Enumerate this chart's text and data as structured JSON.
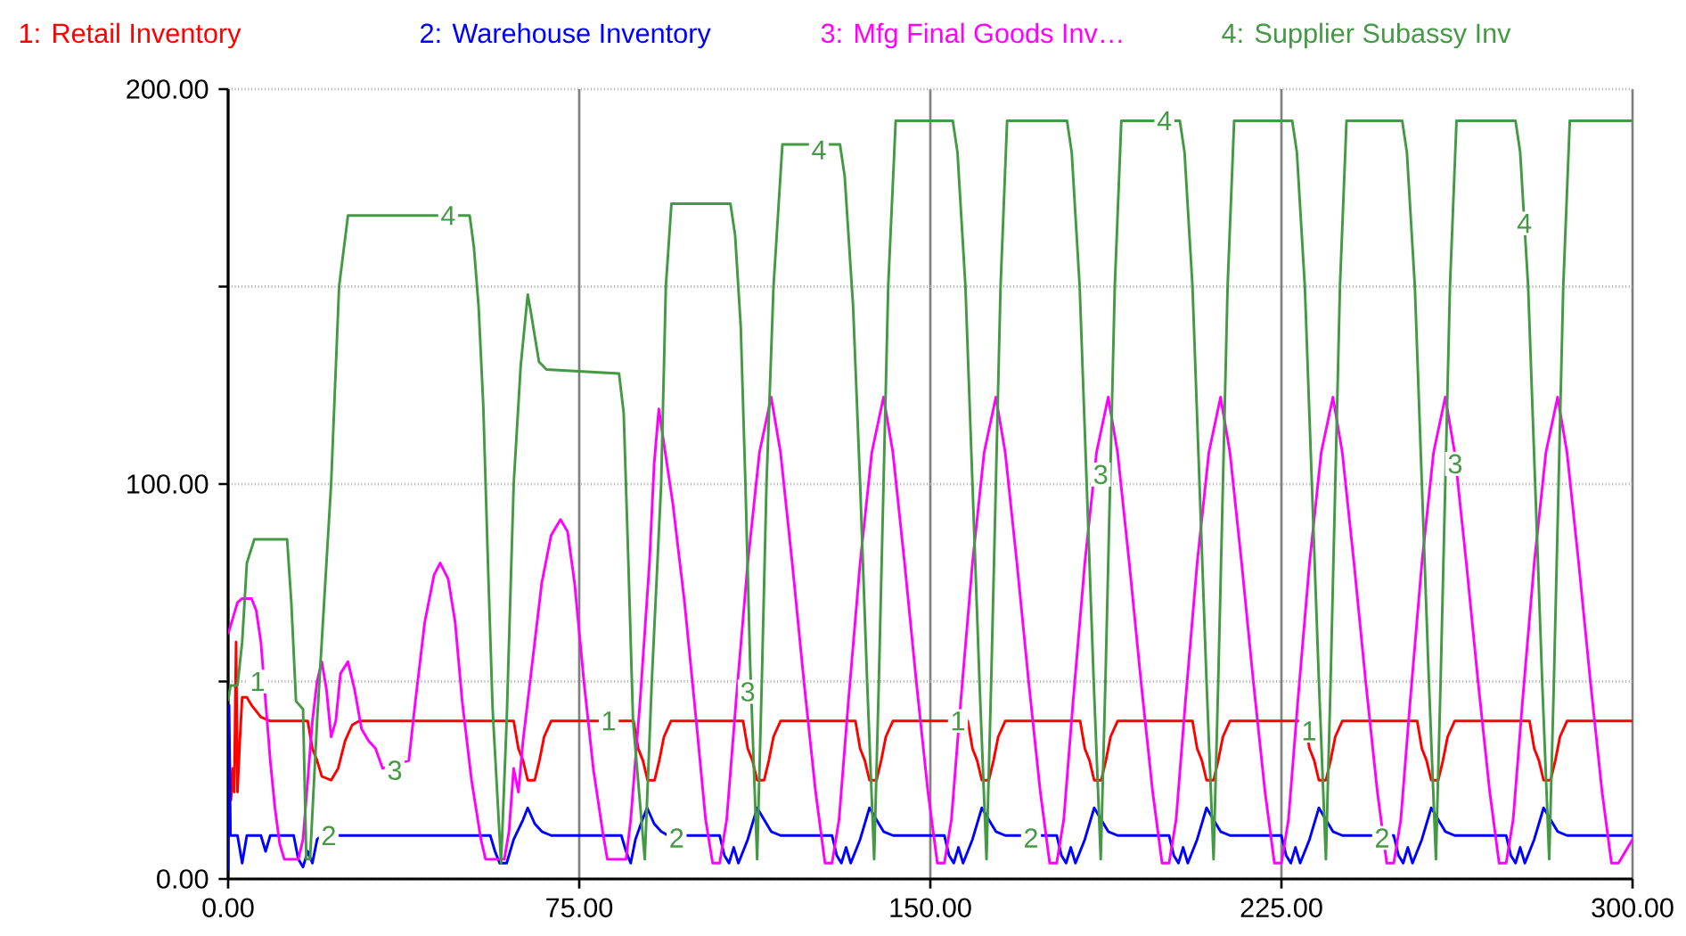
{
  "chart_data": {
    "type": "line",
    "xlim": [
      0,
      300
    ],
    "ylim": [
      0,
      200
    ],
    "xticks": [
      {
        "value": 0,
        "label": "0.00"
      },
      {
        "value": 75,
        "label": "75.00"
      },
      {
        "value": 150,
        "label": "150.00"
      },
      {
        "value": 225,
        "label": "225.00"
      },
      {
        "value": 300,
        "label": "300.00"
      }
    ],
    "yticks": [
      {
        "value": 0,
        "label": "0.00"
      },
      {
        "value": 50,
        "label": null
      },
      {
        "value": 100,
        "label": "100.00"
      },
      {
        "value": 150,
        "label": null
      },
      {
        "value": 200,
        "label": "200.00"
      }
    ],
    "grid": true,
    "legend": "top",
    "line_style": "solid",
    "series": [
      {
        "name": "1: Retail Inventory",
        "color": "#ff0000",
        "x": [
          0,
          0.3,
          0.6,
          1,
          1.3,
          1.7,
          2,
          2.5,
          3,
          4,
          5,
          7,
          9,
          17,
          18,
          19,
          20,
          22,
          23.5,
          25,
          26.5,
          28,
          61,
          62,
          63,
          64,
          65.5,
          66.5,
          67.5,
          69,
          86.6,
          87.6,
          88.6,
          89.6,
          91.1,
          92.1,
          93.1,
          94.6,
          110,
          111,
          112,
          113,
          114.5,
          115.5,
          116.5,
          118,
          134,
          135,
          136,
          137,
          138.5,
          139.5,
          140.5,
          142,
          158,
          159,
          160,
          161,
          162.5,
          163.5,
          164.5,
          166,
          182,
          183,
          184,
          185,
          186.5,
          187.5,
          188.5,
          190,
          206,
          207,
          208,
          209,
          210.5,
          211.5,
          212.5,
          214,
          230,
          231,
          232,
          233,
          234.5,
          235.5,
          236.5,
          238,
          254,
          255,
          256,
          257,
          258.5,
          259.5,
          260.5,
          262,
          278,
          279,
          280,
          281,
          282.5,
          283.5,
          284.5,
          286,
          300
        ],
        "values": [
          22,
          30,
          20,
          28,
          22,
          60,
          22,
          35,
          46,
          46,
          44,
          41,
          40,
          40,
          33,
          30,
          26,
          25,
          28,
          35,
          39,
          40,
          40,
          33,
          30,
          25,
          25,
          30,
          36,
          40,
          40,
          33,
          30,
          25,
          25,
          30,
          36,
          40,
          40,
          33,
          30,
          25,
          25,
          30,
          36,
          40,
          40,
          33,
          30,
          25,
          25,
          30,
          36,
          40,
          40,
          33,
          30,
          25,
          25,
          30,
          36,
          40,
          40,
          33,
          30,
          25,
          25,
          30,
          36,
          40,
          40,
          33,
          30,
          25,
          25,
          30,
          36,
          40,
          40,
          33,
          30,
          25,
          25,
          30,
          36,
          40,
          40,
          33,
          30,
          25,
          25,
          30,
          36,
          40,
          40,
          33,
          30,
          25,
          25,
          30,
          36,
          40,
          40
        ]
      },
      {
        "name": "2: Warehouse Inventory",
        "color": "#0000ff",
        "x": [
          0,
          0.2,
          0.5,
          2,
          3,
          4,
          7,
          8,
          9,
          14,
          15,
          16,
          17,
          18,
          19,
          20,
          56,
          57,
          58,
          59.5,
          61,
          63,
          64,
          65.5,
          67,
          69,
          84,
          85,
          86,
          87,
          88.5,
          89.5,
          91,
          92.5,
          94,
          105,
          106,
          107,
          108,
          109,
          111,
          113,
          115,
          116,
          118,
          129,
          130,
          131,
          132,
          133,
          135,
          137,
          139,
          140,
          142,
          153,
          154,
          155,
          156,
          157,
          159,
          161,
          163,
          164,
          166,
          177,
          178,
          179,
          180,
          181,
          183,
          185,
          187,
          188,
          190,
          201,
          202,
          203,
          204,
          205,
          207,
          209,
          211,
          212,
          214,
          225,
          226,
          227,
          228,
          229,
          231,
          233,
          235,
          236,
          238,
          249,
          250,
          251,
          252,
          253,
          255,
          257,
          259,
          260,
          262,
          273,
          274,
          275,
          276,
          277,
          279,
          281,
          283,
          284,
          286,
          300
        ],
        "values": [
          2,
          44,
          11,
          11,
          4,
          11,
          11,
          7,
          11,
          11,
          5,
          3,
          7,
          4,
          10,
          11,
          11,
          7,
          4,
          4,
          10,
          15,
          18,
          14,
          12,
          11,
          11,
          7,
          4,
          10,
          15,
          18,
          14,
          12,
          11,
          11,
          6,
          4,
          8,
          4,
          10,
          18,
          14,
          12,
          11,
          11,
          6,
          4,
          8,
          4,
          10,
          18,
          14,
          12,
          11,
          11,
          6,
          4,
          8,
          4,
          10,
          18,
          14,
          12,
          11,
          11,
          6,
          4,
          8,
          4,
          10,
          18,
          14,
          12,
          11,
          11,
          6,
          4,
          8,
          4,
          10,
          18,
          14,
          12,
          11,
          11,
          6,
          4,
          8,
          4,
          10,
          18,
          14,
          12,
          11,
          11,
          6,
          4,
          8,
          4,
          10,
          18,
          14,
          12,
          11,
          11,
          6,
          4,
          8,
          4,
          10,
          18,
          14,
          12,
          11,
          11
        ]
      },
      {
        "name": "3: Mfg Final Goods Inv…",
        "color": "#ff00ff",
        "x": [
          0,
          1,
          2,
          3,
          5,
          6,
          7,
          8,
          9,
          10,
          11,
          12,
          15,
          16,
          17,
          18,
          19,
          20,
          21,
          22,
          23,
          24,
          25.6,
          27,
          28.5,
          30,
          31.5,
          33,
          38.6,
          40,
          42,
          44,
          45.3,
          47,
          48.5,
          50,
          52,
          54,
          55,
          59,
          60,
          61,
          62,
          63,
          65,
          67,
          69,
          71,
          72.5,
          74,
          76,
          78,
          80,
          81,
          85,
          86,
          88,
          90,
          91,
          92,
          95,
          97.5,
          100,
          102,
          103.5,
          105,
          106.5,
          108.5,
          111,
          113.5,
          116,
          118,
          120.5,
          123,
          125.5,
          127.5,
          129,
          130.5,
          132.5,
          135,
          137.5,
          140,
          142,
          144.5,
          147,
          149.5,
          151.5,
          153,
          154.5,
          156.5,
          159,
          161.5,
          164,
          166,
          168.5,
          171,
          173.5,
          175.5,
          177,
          178.5,
          180.5,
          183,
          185.5,
          188,
          190,
          192.5,
          195,
          197.5,
          199.5,
          201,
          202.5,
          204.5,
          207,
          209.5,
          212,
          214,
          216.5,
          219,
          221.5,
          223.5,
          225,
          226.5,
          228.5,
          231,
          233.5,
          236,
          238,
          240.5,
          243,
          245.5,
          247.5,
          249,
          250.5,
          252.5,
          255,
          257.5,
          260,
          262,
          264.5,
          267,
          269.5,
          271.5,
          273,
          274.5,
          276.5,
          279,
          281.5,
          284,
          286,
          288.5,
          291,
          293.5,
          295.5,
          297,
          299,
          300
        ],
        "values": [
          62,
          66,
          70,
          71,
          71,
          68,
          60,
          45,
          30,
          18,
          9,
          5,
          5,
          10,
          25,
          40,
          50,
          55,
          48,
          36,
          40,
          52,
          55,
          48,
          38,
          35,
          33,
          28,
          30,
          45,
          65,
          77,
          80,
          76,
          65,
          45,
          25,
          10,
          5,
          5,
          12,
          28,
          22,
          35,
          55,
          75,
          87,
          91,
          88,
          75,
          50,
          28,
          12,
          5,
          5,
          15,
          45,
          80,
          105,
          119,
          95,
          70,
          40,
          15,
          4,
          4,
          15,
          45,
          80,
          108,
          122,
          108,
          80,
          50,
          22,
          4,
          4,
          15,
          45,
          80,
          108,
          122,
          108,
          80,
          50,
          22,
          4,
          4,
          15,
          45,
          80,
          108,
          122,
          108,
          80,
          50,
          22,
          4,
          4,
          15,
          45,
          80,
          108,
          122,
          108,
          80,
          50,
          22,
          4,
          4,
          15,
          45,
          80,
          108,
          122,
          108,
          80,
          50,
          22,
          4,
          4,
          15,
          45,
          80,
          108,
          122,
          108,
          80,
          50,
          22,
          4,
          4,
          15,
          45,
          80,
          108,
          122,
          108,
          80,
          50,
          22,
          4,
          4,
          15,
          45,
          80,
          108,
          122,
          108,
          80,
          50,
          22,
          4,
          4,
          8,
          10
        ]
      },
      {
        "name": "4: Supplier Subassy Inv",
        "color": "#449944",
        "x": [
          0,
          0.5,
          2,
          3,
          4,
          5.6,
          12.6,
          13.5,
          14.5,
          16,
          16.7,
          17.5,
          19,
          20,
          22,
          23.7,
          25.6,
          51.6,
          52.5,
          53.5,
          54.5,
          55.5,
          56.5,
          58.3,
          59.5,
          61,
          62.5,
          64,
          64.6,
          66.4,
          68,
          83.5,
          84.5,
          85.5,
          86.5,
          89,
          90.5,
          92.5,
          93.5,
          94.7,
          107.3,
          108.3,
          109.5,
          110.5,
          111.5,
          113,
          114,
          115,
          116.5,
          118.4,
          130.7,
          131.7,
          133.5,
          135,
          136.5,
          138,
          139,
          140,
          141,
          142.6,
          154.8,
          155.8,
          157.5,
          159,
          160.5,
          162,
          163,
          164,
          165,
          166.4,
          179.2,
          180.2,
          181.9,
          183.4,
          184.9,
          186.4,
          187.4,
          188.4,
          189.4,
          190.8,
          203.3,
          204.3,
          206,
          207.5,
          209,
          210.5,
          211.5,
          212.5,
          213.5,
          214.9,
          227.3,
          228.3,
          230,
          231.5,
          233,
          234.5,
          235.5,
          236.5,
          237.5,
          238.9,
          250.8,
          251.8,
          253.5,
          255,
          256.5,
          258,
          259,
          260,
          261,
          262.4,
          275,
          276,
          277.7,
          279.2,
          280.7,
          282.2,
          283.2,
          284.2,
          285.2,
          286.6,
          300
        ],
        "values": [
          45,
          49,
          49,
          60,
          80,
          86,
          86,
          70,
          45,
          43,
          5,
          5,
          40,
          60,
          100,
          150,
          168,
          168,
          160,
          145,
          120,
          80,
          43,
          4,
          40,
          100,
          130,
          148,
          144,
          131,
          129,
          128,
          118,
          80,
          40,
          5,
          50,
          100,
          150,
          171,
          171,
          163,
          140,
          100,
          55,
          5,
          50,
          100,
          150,
          186,
          186,
          178,
          145,
          100,
          50,
          5,
          50,
          100,
          150,
          192,
          192,
          184,
          150,
          100,
          50,
          5,
          50,
          100,
          150,
          192,
          192,
          184,
          150,
          100,
          50,
          5,
          50,
          100,
          150,
          192,
          192,
          184,
          150,
          100,
          50,
          5,
          50,
          100,
          150,
          192,
          192,
          184,
          150,
          100,
          50,
          5,
          50,
          100,
          150,
          192,
          192,
          184,
          150,
          100,
          50,
          5,
          50,
          100,
          150,
          192,
          192,
          184,
          150,
          100,
          50,
          5,
          50,
          100,
          150,
          192,
          192
        ]
      }
    ],
    "annotations": [
      {
        "text": "1",
        "x": 6.3,
        "y": 50
      },
      {
        "text": "1",
        "x": 81.3,
        "y": 40
      },
      {
        "text": "1",
        "x": 155.9,
        "y": 40
      },
      {
        "text": "1",
        "x": 230.9,
        "y": 37.5
      },
      {
        "text": "2",
        "x": 21.5,
        "y": 11
      },
      {
        "text": "2",
        "x": 95.8,
        "y": 10.4
      },
      {
        "text": "2",
        "x": 171.5,
        "y": 10.4
      },
      {
        "text": "2",
        "x": 246.5,
        "y": 10.4
      },
      {
        "text": "3",
        "x": 35.6,
        "y": 27.5
      },
      {
        "text": "3",
        "x": 111,
        "y": 47.4
      },
      {
        "text": "3",
        "x": 186.4,
        "y": 102.4
      },
      {
        "text": "3",
        "x": 262.1,
        "y": 105.1
      },
      {
        "text": "4",
        "x": 47,
        "y": 168
      },
      {
        "text": "4",
        "x": 126.2,
        "y": 184.6
      },
      {
        "text": "4",
        "x": 200,
        "y": 192
      },
      {
        "text": "4",
        "x": 276.9,
        "y": 166
      }
    ]
  }
}
